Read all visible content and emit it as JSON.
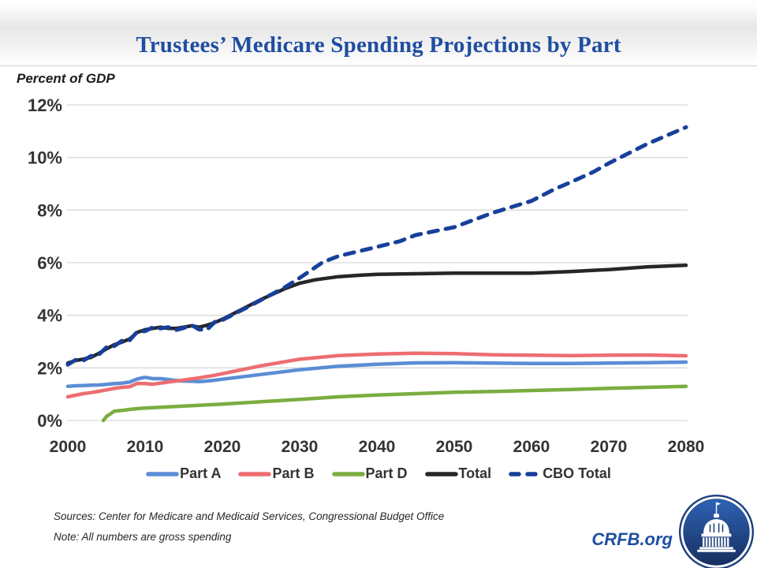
{
  "header": {
    "title": "Trustees’ Medicare Spending Projections by Part"
  },
  "axis_note": "Percent of GDP",
  "footer": {
    "sources": "Sources: Center for Medicare and Medicaid Services, Congressional Budget Office",
    "note": "Note: All numbers are gross spending",
    "brand": "CRFB.org",
    "logo": "capitol-dome-logo"
  },
  "colors": {
    "title_blue": "#1F4DA1",
    "brand_blue": "#1D4FA1",
    "gridline": "#D9D9D9",
    "axis_text": "#333333",
    "logo_navy": "#1E3E7E",
    "logo_inner_top": "#2F62B5",
    "logo_inner_bottom": "#16305F"
  },
  "chart_data": {
    "type": "line",
    "title": "Trustees’ Medicare Spending Projections by Part",
    "ylabel": "Percent of GDP",
    "xlabel": "",
    "xlim": [
      2000,
      2080
    ],
    "ylim": [
      0,
      12
    ],
    "grid": "horizontal-light",
    "legend_position": "bottom-center",
    "xticks": [
      2000,
      2010,
      2020,
      2030,
      2040,
      2050,
      2060,
      2070,
      2080
    ],
    "yticks": {
      "values": [
        0,
        2,
        4,
        6,
        8,
        10,
        12
      ],
      "labels": [
        "0%",
        "2%",
        "4%",
        "6%",
        "8%",
        "10%",
        "12%"
      ]
    },
    "series": [
      {
        "id": "part-a",
        "name": "Part A",
        "color": "#5B8DD5",
        "style": "solid",
        "width": 4.5,
        "points": [
          [
            2000,
            1.3
          ],
          [
            2001,
            1.32
          ],
          [
            2002,
            1.33
          ],
          [
            2003,
            1.34
          ],
          [
            2004,
            1.35
          ],
          [
            2005,
            1.37
          ],
          [
            2006,
            1.4
          ],
          [
            2007,
            1.42
          ],
          [
            2008,
            1.46
          ],
          [
            2009,
            1.58
          ],
          [
            2010,
            1.64
          ],
          [
            2011,
            1.59
          ],
          [
            2012,
            1.59
          ],
          [
            2013,
            1.56
          ],
          [
            2014,
            1.52
          ],
          [
            2015,
            1.5
          ],
          [
            2016,
            1.49
          ],
          [
            2017,
            1.48
          ],
          [
            2018,
            1.5
          ],
          [
            2019,
            1.53
          ],
          [
            2020,
            1.57
          ],
          [
            2022,
            1.64
          ],
          [
            2025,
            1.75
          ],
          [
            2030,
            1.93
          ],
          [
            2035,
            2.06
          ],
          [
            2040,
            2.14
          ],
          [
            2045,
            2.19
          ],
          [
            2050,
            2.2
          ],
          [
            2055,
            2.18
          ],
          [
            2060,
            2.17
          ],
          [
            2065,
            2.17
          ],
          [
            2070,
            2.18
          ],
          [
            2075,
            2.2
          ],
          [
            2080,
            2.22
          ]
        ]
      },
      {
        "id": "part-b",
        "name": "Part B",
        "color": "#ED6D71",
        "style": "solid",
        "width": 4.5,
        "points": [
          [
            2000,
            0.9
          ],
          [
            2001,
            0.96
          ],
          [
            2002,
            1.02
          ],
          [
            2003,
            1.06
          ],
          [
            2004,
            1.11
          ],
          [
            2005,
            1.16
          ],
          [
            2006,
            1.22
          ],
          [
            2007,
            1.26
          ],
          [
            2008,
            1.28
          ],
          [
            2009,
            1.41
          ],
          [
            2010,
            1.4
          ],
          [
            2011,
            1.38
          ],
          [
            2012,
            1.42
          ],
          [
            2013,
            1.46
          ],
          [
            2014,
            1.5
          ],
          [
            2015,
            1.54
          ],
          [
            2016,
            1.58
          ],
          [
            2017,
            1.62
          ],
          [
            2018,
            1.67
          ],
          [
            2019,
            1.72
          ],
          [
            2020,
            1.78
          ],
          [
            2022,
            1.9
          ],
          [
            2025,
            2.08
          ],
          [
            2030,
            2.33
          ],
          [
            2035,
            2.47
          ],
          [
            2040,
            2.53
          ],
          [
            2045,
            2.56
          ],
          [
            2050,
            2.54
          ],
          [
            2055,
            2.5
          ],
          [
            2060,
            2.48
          ],
          [
            2065,
            2.47
          ],
          [
            2070,
            2.48
          ],
          [
            2075,
            2.49
          ],
          [
            2080,
            2.46
          ]
        ]
      },
      {
        "id": "part-d",
        "name": "Part D",
        "color": "#7AAD3F",
        "style": "solid",
        "width": 4.5,
        "points": [
          [
            2004.6,
            0.0
          ],
          [
            2005,
            0.15
          ],
          [
            2006,
            0.35
          ],
          [
            2007,
            0.38
          ],
          [
            2008,
            0.42
          ],
          [
            2009,
            0.45
          ],
          [
            2010,
            0.47
          ],
          [
            2012,
            0.5
          ],
          [
            2014,
            0.53
          ],
          [
            2015,
            0.55
          ],
          [
            2016,
            0.56
          ],
          [
            2018,
            0.59
          ],
          [
            2020,
            0.62
          ],
          [
            2025,
            0.71
          ],
          [
            2030,
            0.8
          ],
          [
            2035,
            0.9
          ],
          [
            2040,
            0.97
          ],
          [
            2045,
            1.02
          ],
          [
            2050,
            1.07
          ],
          [
            2055,
            1.1
          ],
          [
            2060,
            1.14
          ],
          [
            2065,
            1.18
          ],
          [
            2070,
            1.22
          ],
          [
            2075,
            1.26
          ],
          [
            2080,
            1.3
          ]
        ]
      },
      {
        "id": "total",
        "name": "Total",
        "color": "#262626",
        "style": "solid",
        "width": 4.5,
        "points": [
          [
            2000,
            2.18
          ],
          [
            2001,
            2.28
          ],
          [
            2002,
            2.33
          ],
          [
            2003,
            2.4
          ],
          [
            2004,
            2.55
          ],
          [
            2005,
            2.72
          ],
          [
            2006,
            2.88
          ],
          [
            2007,
            2.98
          ],
          [
            2008,
            3.1
          ],
          [
            2009,
            3.35
          ],
          [
            2010,
            3.45
          ],
          [
            2011,
            3.5
          ],
          [
            2012,
            3.55
          ],
          [
            2013,
            3.5
          ],
          [
            2014,
            3.5
          ],
          [
            2015,
            3.55
          ],
          [
            2016,
            3.6
          ],
          [
            2017,
            3.55
          ],
          [
            2018,
            3.62
          ],
          [
            2019,
            3.72
          ],
          [
            2020,
            3.85
          ],
          [
            2022,
            4.15
          ],
          [
            2025,
            4.6
          ],
          [
            2028,
            5.0
          ],
          [
            2030,
            5.22
          ],
          [
            2032,
            5.35
          ],
          [
            2035,
            5.47
          ],
          [
            2038,
            5.53
          ],
          [
            2040,
            5.56
          ],
          [
            2045,
            5.58
          ],
          [
            2050,
            5.6
          ],
          [
            2055,
            5.6
          ],
          [
            2060,
            5.6
          ],
          [
            2065,
            5.66
          ],
          [
            2070,
            5.74
          ],
          [
            2075,
            5.84
          ],
          [
            2080,
            5.9
          ]
        ]
      },
      {
        "id": "cbo-total",
        "name": "CBO Total",
        "color": "#17409B",
        "style": "dashed",
        "width": 5,
        "points": [
          [
            2000,
            2.12
          ],
          [
            2001,
            2.3
          ],
          [
            2002,
            2.28
          ],
          [
            2003,
            2.45
          ],
          [
            2004,
            2.5
          ],
          [
            2005,
            2.78
          ],
          [
            2006,
            2.83
          ],
          [
            2007,
            3.03
          ],
          [
            2008,
            3.05
          ],
          [
            2009,
            3.38
          ],
          [
            2010,
            3.4
          ],
          [
            2011,
            3.54
          ],
          [
            2012,
            3.5
          ],
          [
            2013,
            3.55
          ],
          [
            2014,
            3.44
          ],
          [
            2015,
            3.52
          ],
          [
            2016,
            3.63
          ],
          [
            2017,
            3.46
          ],
          [
            2018,
            3.45
          ],
          [
            2019,
            3.74
          ],
          [
            2020,
            3.82
          ],
          [
            2022,
            4.12
          ],
          [
            2025,
            4.58
          ],
          [
            2028,
            5.05
          ],
          [
            2030,
            5.42
          ],
          [
            2033,
            6.02
          ],
          [
            2035,
            6.25
          ],
          [
            2040,
            6.6
          ],
          [
            2043,
            6.82
          ],
          [
            2045,
            7.05
          ],
          [
            2050,
            7.35
          ],
          [
            2055,
            7.9
          ],
          [
            2060,
            8.35
          ],
          [
            2063,
            8.8
          ],
          [
            2065,
            9.05
          ],
          [
            2068,
            9.45
          ],
          [
            2070,
            9.78
          ],
          [
            2075,
            10.52
          ],
          [
            2080,
            11.15
          ]
        ]
      }
    ]
  }
}
